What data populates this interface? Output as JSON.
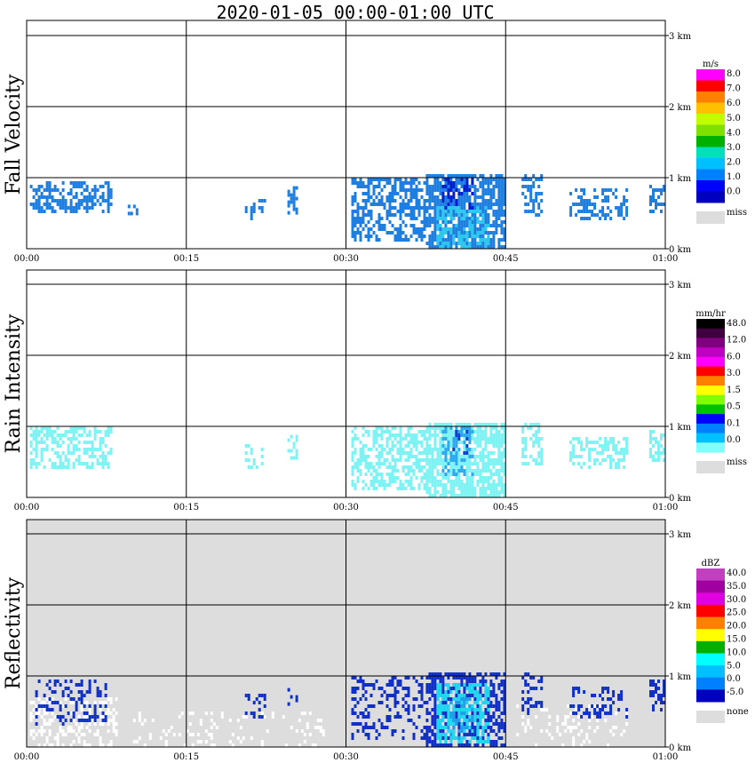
{
  "title": "2020-01-05   00:00-01:00 UTC",
  "x_ticks": [
    "00:00",
    "00:15",
    "00:30",
    "00:45",
    "01:00"
  ],
  "height_ticks": [
    "0 km",
    "1 km",
    "2 km",
    "3 km"
  ],
  "colors": {
    "missing_gray": "#dddddd",
    "grid": "#000000"
  },
  "chart_data": [
    {
      "type": "heatmap",
      "name": "fall-velocity",
      "ylabel": "Fall Velocity",
      "xlim_minutes": [
        0,
        60
      ],
      "ylim_km": [
        0,
        3.2
      ],
      "background": "#ffffff",
      "colorbar": {
        "unit": "m/s",
        "labels": [
          "8.0",
          "7.0",
          "6.0",
          "5.0",
          "4.0",
          "3.0",
          "2.0",
          "1.0",
          "0.0"
        ],
        "colors": [
          "#ff00ff",
          "#ff0000",
          "#ff8000",
          "#ffc000",
          "#c0ff00",
          "#80e000",
          "#00b000",
          "#00e0c0",
          "#00c0ff",
          "#0080ff",
          "#0000ff",
          "#0000c0"
        ],
        "missing_label": "miss"
      },
      "regions": [
        {
          "t": [
            0.3,
            8.0
          ],
          "h": [
            0.5,
            0.95
          ],
          "color": "#1f7fe0",
          "density": 0.55
        },
        {
          "t": [
            9.5,
            10.3
          ],
          "h": [
            0.5,
            0.62
          ],
          "color": "#1f7fe0",
          "density": 0.5
        },
        {
          "t": [
            20.5,
            22.5
          ],
          "h": [
            0.4,
            0.75
          ],
          "color": "#1f7fe0",
          "density": 0.4
        },
        {
          "t": [
            24.5,
            25.5
          ],
          "h": [
            0.5,
            0.88
          ],
          "color": "#1f7fe0",
          "density": 0.45
        },
        {
          "t": [
            30.5,
            37.5
          ],
          "h": [
            0.1,
            1.0
          ],
          "color": "#1f7fe0",
          "density": 0.55
        },
        {
          "t": [
            37.5,
            44.8
          ],
          "h": [
            0.0,
            1.05
          ],
          "color": "#1f7fe0",
          "density": 0.75
        },
        {
          "t": [
            38.5,
            43.5
          ],
          "h": [
            0.0,
            0.6
          ],
          "color": "#2ec8ee",
          "density": 0.45
        },
        {
          "t": [
            39.0,
            42.0
          ],
          "h": [
            0.55,
            1.0
          ],
          "color": "#0020d0",
          "density": 0.45
        },
        {
          "t": [
            46.5,
            48.5
          ],
          "h": [
            0.45,
            1.05
          ],
          "color": "#1f7fe0",
          "density": 0.45
        },
        {
          "t": [
            51.0,
            56.5
          ],
          "h": [
            0.4,
            0.85
          ],
          "color": "#1f7fe0",
          "density": 0.45
        },
        {
          "t": [
            58.5,
            60.0
          ],
          "h": [
            0.5,
            0.95
          ],
          "color": "#1f7fe0",
          "density": 0.5
        }
      ]
    },
    {
      "type": "heatmap",
      "name": "rain-intensity",
      "ylabel": "Rain Intensity",
      "xlim_minutes": [
        0,
        60
      ],
      "ylim_km": [
        0,
        3.2
      ],
      "background": "#ffffff",
      "colorbar": {
        "unit": "mm/hr",
        "labels": [
          "48.0",
          "12.0",
          "6.0",
          "3.0",
          "1.5",
          "0.5",
          "0.1",
          "0.0"
        ],
        "colors": [
          "#000000",
          "#400040",
          "#800080",
          "#c000c0",
          "#ff00ff",
          "#ff0000",
          "#ff8000",
          "#ffff00",
          "#80ff00",
          "#00c000",
          "#0000ff",
          "#0080ff",
          "#00c0ff",
          "#80ffff"
        ],
        "missing_label": "miss"
      },
      "regions": [
        {
          "t": [
            0.3,
            8.0
          ],
          "h": [
            0.4,
            1.0
          ],
          "color": "#7ff3f3",
          "density": 0.55
        },
        {
          "t": [
            20.5,
            22.5
          ],
          "h": [
            0.4,
            0.75
          ],
          "color": "#7ff3f3",
          "density": 0.35
        },
        {
          "t": [
            24.5,
            25.5
          ],
          "h": [
            0.5,
            0.88
          ],
          "color": "#7ff3f3",
          "density": 0.4
        },
        {
          "t": [
            30.5,
            37.5
          ],
          "h": [
            0.1,
            1.0
          ],
          "color": "#7ff3f3",
          "density": 0.55
        },
        {
          "t": [
            37.5,
            44.8
          ],
          "h": [
            0.0,
            1.05
          ],
          "color": "#7ff3f3",
          "density": 0.75
        },
        {
          "t": [
            39.0,
            42.0
          ],
          "h": [
            0.3,
            1.0
          ],
          "color": "#2ea8ee",
          "density": 0.35
        },
        {
          "t": [
            40.0,
            41.5
          ],
          "h": [
            0.6,
            1.0
          ],
          "color": "#1040d0",
          "density": 0.25
        },
        {
          "t": [
            46.5,
            48.5
          ],
          "h": [
            0.45,
            1.05
          ],
          "color": "#7ff3f3",
          "density": 0.45
        },
        {
          "t": [
            51.0,
            56.5
          ],
          "h": [
            0.4,
            0.85
          ],
          "color": "#7ff3f3",
          "density": 0.45
        },
        {
          "t": [
            58.5,
            60.0
          ],
          "h": [
            0.5,
            0.95
          ],
          "color": "#7ff3f3",
          "density": 0.5
        }
      ]
    },
    {
      "type": "heatmap",
      "name": "reflectivity",
      "ylabel": "Reflectivity",
      "xlim_minutes": [
        0,
        60
      ],
      "ylim_km": [
        0,
        3.2
      ],
      "background": "#dddddd",
      "colorbar": {
        "unit": "dBZ",
        "labels": [
          "40.0",
          "35.0",
          "30.0",
          "25.0",
          "20.0",
          "15.0",
          "10.0",
          "5.0",
          "0.0",
          "-5.0"
        ],
        "colors": [
          "#c040c0",
          "#a000a0",
          "#e000e0",
          "#ff0000",
          "#ff8000",
          "#ffff00",
          "#00b000",
          "#00ffff",
          "#00c0ff",
          "#0080ff",
          "#0000c0"
        ],
        "missing_label": "none"
      },
      "regions": [
        {
          "t": [
            0.3,
            8.5
          ],
          "h": [
            0.0,
            0.7
          ],
          "color": "#ffffff",
          "density": 0.35
        },
        {
          "t": [
            0.8,
            7.5
          ],
          "h": [
            0.3,
            0.95
          ],
          "color": "#1030c8",
          "density": 0.3
        },
        {
          "t": [
            20.5,
            22.5
          ],
          "h": [
            0.4,
            0.75
          ],
          "color": "#1030c8",
          "density": 0.25
        },
        {
          "t": [
            24.5,
            25.5
          ],
          "h": [
            0.5,
            0.88
          ],
          "color": "#1030c8",
          "density": 0.3
        },
        {
          "t": [
            10.0,
            28.0
          ],
          "h": [
            0.0,
            0.5
          ],
          "color": "#ffffff",
          "density": 0.12
        },
        {
          "t": [
            30.5,
            37.5
          ],
          "h": [
            0.1,
            1.0
          ],
          "color": "#1030c8",
          "density": 0.3
        },
        {
          "t": [
            37.5,
            44.8
          ],
          "h": [
            0.0,
            1.05
          ],
          "color": "#1030c8",
          "density": 0.55
        },
        {
          "t": [
            38.5,
            43.5
          ],
          "h": [
            0.05,
            0.9
          ],
          "color": "#22d8f0",
          "density": 0.55
        },
        {
          "t": [
            39.5,
            42.0
          ],
          "h": [
            0.1,
            0.7
          ],
          "color": "#20a0e8",
          "density": 0.3
        },
        {
          "t": [
            46.0,
            56.5
          ],
          "h": [
            0.0,
            0.6
          ],
          "color": "#ffffff",
          "density": 0.2
        },
        {
          "t": [
            46.5,
            48.5
          ],
          "h": [
            0.45,
            1.05
          ],
          "color": "#1030c8",
          "density": 0.35
        },
        {
          "t": [
            51.0,
            56.5
          ],
          "h": [
            0.4,
            0.85
          ],
          "color": "#1030c8",
          "density": 0.3
        },
        {
          "t": [
            58.5,
            60.0
          ],
          "h": [
            0.5,
            0.95
          ],
          "color": "#1030c8",
          "density": 0.4
        }
      ]
    }
  ]
}
